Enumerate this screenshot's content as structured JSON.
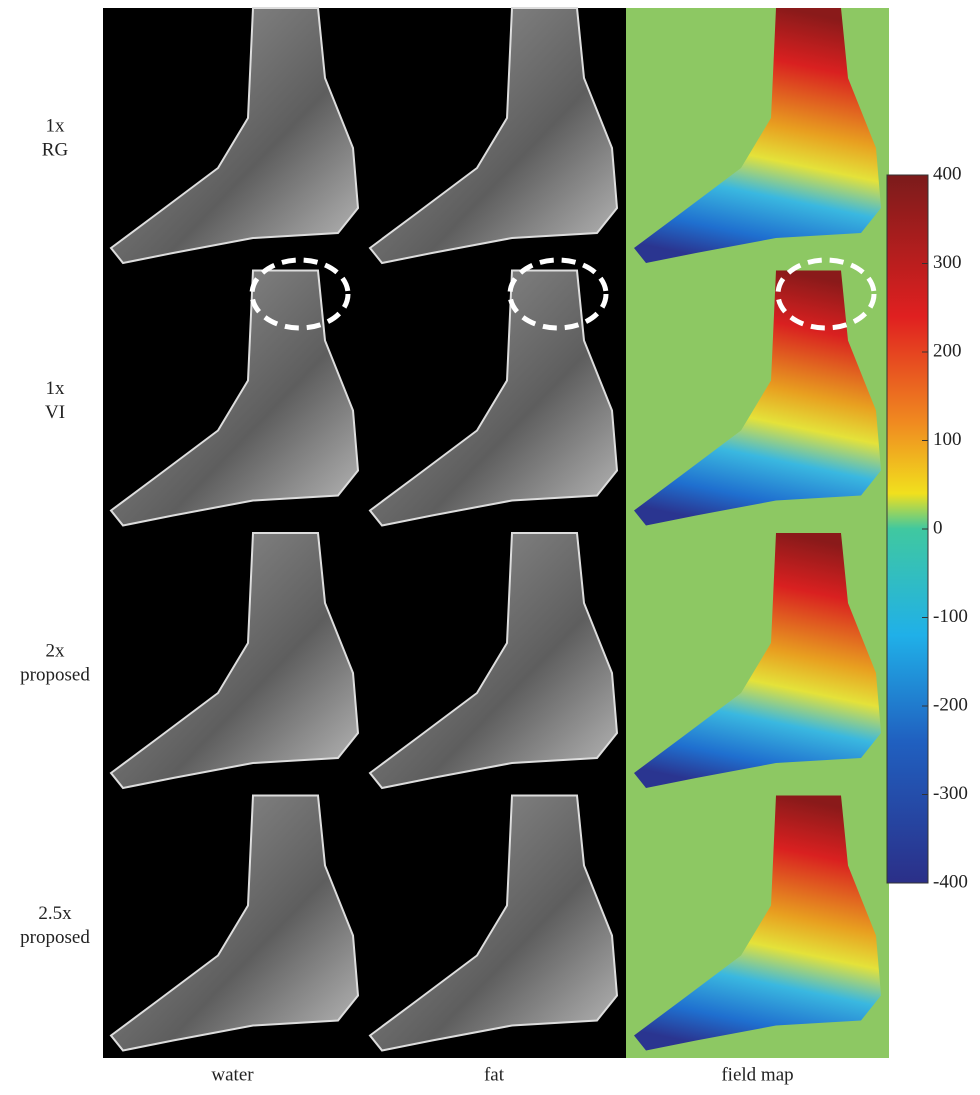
{
  "rows": [
    {
      "lines": [
        "1x",
        "RG"
      ]
    },
    {
      "lines": [
        "1x",
        "VI"
      ]
    },
    {
      "lines": [
        "2x",
        "proposed"
      ]
    },
    {
      "lines": [
        "2.5x",
        "proposed"
      ]
    }
  ],
  "columns": [
    "water",
    "fat",
    "field map"
  ],
  "colorbar": {
    "lim": [
      -400,
      400
    ],
    "ticks": [
      -400,
      -300,
      -200,
      -100,
      0,
      100,
      200,
      300,
      400
    ]
  }
}
